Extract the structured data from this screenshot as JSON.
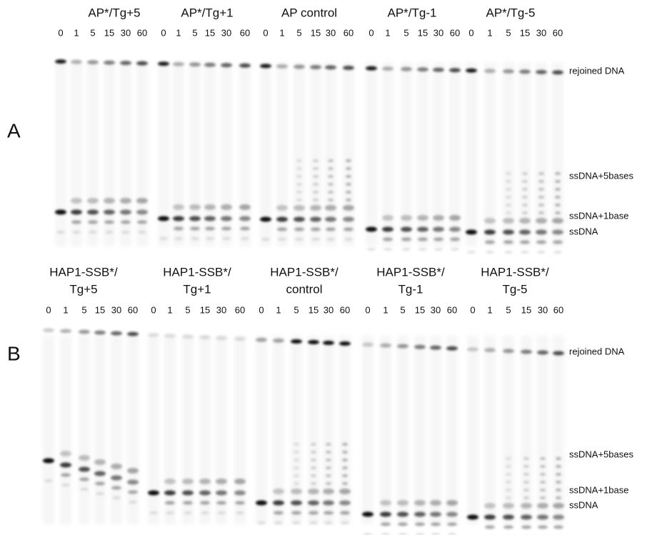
{
  "panels": [
    {
      "letter": "A",
      "groups": [
        {
          "label": [
            "AP*/Tg+5"
          ],
          "lanes": [
            "0",
            "1",
            "5",
            "15",
            "30",
            "60"
          ]
        },
        {
          "label": [
            "AP*/Tg+1"
          ],
          "lanes": [
            "0",
            "1",
            "5",
            "15",
            "30",
            "60"
          ]
        },
        {
          "label": [
            "AP control"
          ],
          "lanes": [
            "0",
            "1",
            "5",
            "15",
            "30",
            "60"
          ]
        },
        {
          "label": [
            "AP*/Tg-1"
          ],
          "lanes": [
            "0",
            "1",
            "5",
            "15",
            "30",
            "60"
          ]
        },
        {
          "label": [
            "AP*/Tg-5"
          ],
          "lanes": [
            "0",
            "1",
            "5",
            "15",
            "30",
            "60"
          ]
        }
      ],
      "band_labels": [
        "rejoined DNA",
        "ssDNA+5bases",
        "ssDNA+1base",
        "ssDNA"
      ]
    },
    {
      "letter": "B",
      "groups": [
        {
          "label": [
            "HAP1-SSB*/",
            "Tg+5"
          ],
          "lanes": [
            "0",
            "1",
            "5",
            "15",
            "30",
            "60"
          ]
        },
        {
          "label": [
            "HAP1-SSB*/",
            "Tg+1"
          ],
          "lanes": [
            "0",
            "1",
            "5",
            "15",
            "30",
            "60"
          ]
        },
        {
          "label": [
            "HAP1-SSB*/",
            "control"
          ],
          "lanes": [
            "0",
            "1",
            "5",
            "15",
            "30",
            "60"
          ]
        },
        {
          "label": [
            "HAP1-SSB*/",
            "Tg-1"
          ],
          "lanes": [
            "0",
            "1",
            "5",
            "15",
            "30",
            "60"
          ]
        },
        {
          "label": [
            "HAP1-SSB*/",
            "Tg-5"
          ],
          "lanes": [
            "0",
            "1",
            "5",
            "15",
            "30",
            "60"
          ]
        }
      ],
      "band_labels": [
        "rejoined DNA",
        "ssDNA+5bases",
        "ssDNA+1base",
        "ssDNA"
      ]
    }
  ]
}
